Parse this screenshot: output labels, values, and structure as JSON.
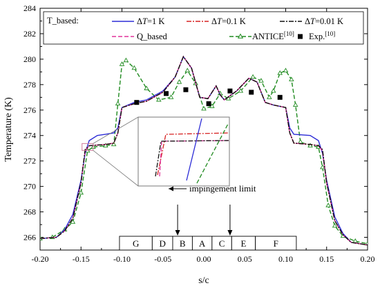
{
  "chart_data": {
    "type": "line",
    "xlabel": "s/c",
    "ylabel": "Temperature (K)",
    "xlim": [
      -0.2,
      0.2
    ],
    "ylim": [
      265,
      284
    ],
    "xticks": [
      "-0.20",
      "-0.15",
      "-0.10",
      "-0.05",
      "0.00",
      "0.05",
      "0.10",
      "0.15",
      "0.20"
    ],
    "xtick_values": [
      -0.2,
      -0.15,
      -0.1,
      -0.05,
      0.0,
      0.05,
      0.1,
      0.15,
      0.2
    ],
    "yticks": [
      "266",
      "268",
      "270",
      "272",
      "274",
      "276",
      "278",
      "280",
      "282",
      "284"
    ],
    "ytick_values": [
      266,
      268,
      270,
      272,
      274,
      276,
      278,
      280,
      282,
      284
    ],
    "legend": {
      "group_label": "T_based:",
      "entries": [
        {
          "label_pre": "Δ",
          "label_ital": "T",
          "label_post": "=1 K",
          "color": "#2b2bd6",
          "dash": "solid"
        },
        {
          "label_pre": "Δ",
          "label_ital": "T",
          "label_post": "=0.1 K",
          "color": "#d62020",
          "dash": "dashdot"
        },
        {
          "label_pre": "Δ",
          "label_ital": "T",
          "label_post": "=0.01 K",
          "color": "#111111",
          "dash": "dashdot"
        },
        {
          "label_pre": "Q_based",
          "label_ital": "",
          "label_post": "",
          "color": "#e0309a",
          "dash": "dashed"
        },
        {
          "label_pre": "ANTICE",
          "label_ital": "",
          "label_post": "",
          "sup": "[10]",
          "color": "#1f8a1f",
          "dash": "dashed",
          "marker": "triangle"
        },
        {
          "label_pre": "Exp.",
          "label_ital": "",
          "label_post": "",
          "sup": "[10]",
          "color": "#000000",
          "marker": "square"
        }
      ],
      "placement": "top"
    },
    "series": [
      {
        "name": "ΔT=1 K",
        "color": "#2b2bd6",
        "points": [
          [
            -0.2,
            265.9
          ],
          [
            -0.18,
            266.0
          ],
          [
            -0.17,
            266.6
          ],
          [
            -0.16,
            267.8
          ],
          [
            -0.15,
            270.5
          ],
          [
            -0.145,
            272.6
          ],
          [
            -0.14,
            273.6
          ],
          [
            -0.13,
            274.0
          ],
          [
            -0.12,
            274.1
          ],
          [
            -0.11,
            274.2
          ],
          [
            -0.105,
            274.6
          ],
          [
            -0.1,
            276.2
          ],
          [
            -0.085,
            276.6
          ],
          [
            -0.07,
            276.8
          ],
          [
            -0.05,
            277.5
          ],
          [
            -0.035,
            278.6
          ],
          [
            -0.025,
            280.2
          ],
          [
            -0.015,
            279.3
          ],
          [
            -0.005,
            277.0
          ],
          [
            0.005,
            276.9
          ],
          [
            0.015,
            277.9
          ],
          [
            0.02,
            277.2
          ],
          [
            0.025,
            276.8
          ],
          [
            0.04,
            277.5
          ],
          [
            0.055,
            278.5
          ],
          [
            0.065,
            278.2
          ],
          [
            0.075,
            276.6
          ],
          [
            0.085,
            276.4
          ],
          [
            0.1,
            276.2
          ],
          [
            0.105,
            274.6
          ],
          [
            0.11,
            274.1
          ],
          [
            0.13,
            274.0
          ],
          [
            0.14,
            273.6
          ],
          [
            0.145,
            272.6
          ],
          [
            0.15,
            270.5
          ],
          [
            0.16,
            267.6
          ],
          [
            0.17,
            266.3
          ],
          [
            0.18,
            265.6
          ],
          [
            0.2,
            265.4
          ]
        ]
      },
      {
        "name": "ΔT=0.1 K",
        "color": "#d62020",
        "points": [
          [
            -0.2,
            265.9
          ],
          [
            -0.18,
            266.0
          ],
          [
            -0.17,
            266.5
          ],
          [
            -0.16,
            267.5
          ],
          [
            -0.15,
            270.3
          ],
          [
            -0.145,
            272.8
          ],
          [
            -0.14,
            273.2
          ],
          [
            -0.12,
            273.3
          ],
          [
            -0.11,
            273.4
          ],
          [
            -0.105,
            274.2
          ],
          [
            -0.1,
            276.2
          ],
          [
            -0.085,
            276.5
          ],
          [
            -0.07,
            276.7
          ],
          [
            -0.05,
            277.4
          ],
          [
            -0.035,
            278.6
          ],
          [
            -0.025,
            280.2
          ],
          [
            -0.015,
            279.3
          ],
          [
            -0.005,
            277.0
          ],
          [
            0.005,
            276.9
          ],
          [
            0.015,
            277.9
          ],
          [
            0.02,
            277.2
          ],
          [
            0.025,
            276.8
          ],
          [
            0.04,
            277.5
          ],
          [
            0.055,
            278.5
          ],
          [
            0.065,
            278.2
          ],
          [
            0.075,
            276.6
          ],
          [
            0.085,
            276.4
          ],
          [
            0.1,
            276.2
          ],
          [
            0.105,
            274.2
          ],
          [
            0.11,
            273.4
          ],
          [
            0.13,
            273.3
          ],
          [
            0.14,
            273.2
          ],
          [
            0.145,
            272.8
          ],
          [
            0.15,
            270.3
          ],
          [
            0.16,
            267.3
          ],
          [
            0.17,
            266.2
          ],
          [
            0.18,
            265.6
          ],
          [
            0.2,
            265.4
          ]
        ]
      },
      {
        "name": "ΔT=0.01 K",
        "color": "#111111",
        "points": [
          [
            -0.2,
            265.9
          ],
          [
            -0.18,
            266.0
          ],
          [
            -0.17,
            266.5
          ],
          [
            -0.16,
            267.5
          ],
          [
            -0.15,
            270.3
          ],
          [
            -0.145,
            272.9
          ],
          [
            -0.14,
            273.2
          ],
          [
            -0.12,
            273.3
          ],
          [
            -0.11,
            273.4
          ],
          [
            -0.105,
            274.2
          ],
          [
            -0.1,
            276.2
          ],
          [
            -0.085,
            276.5
          ],
          [
            -0.07,
            276.7
          ],
          [
            -0.05,
            277.4
          ],
          [
            -0.035,
            278.6
          ],
          [
            -0.025,
            280.2
          ],
          [
            -0.015,
            279.3
          ],
          [
            -0.005,
            277.0
          ],
          [
            0.005,
            276.9
          ],
          [
            0.015,
            277.9
          ],
          [
            0.02,
            277.2
          ],
          [
            0.025,
            276.8
          ],
          [
            0.04,
            277.5
          ],
          [
            0.055,
            278.5
          ],
          [
            0.065,
            278.2
          ],
          [
            0.075,
            276.6
          ],
          [
            0.085,
            276.4
          ],
          [
            0.1,
            276.2
          ],
          [
            0.105,
            274.2
          ],
          [
            0.11,
            273.4
          ],
          [
            0.13,
            273.3
          ],
          [
            0.14,
            273.2
          ],
          [
            0.145,
            272.9
          ],
          [
            0.15,
            270.3
          ],
          [
            0.16,
            267.3
          ],
          [
            0.17,
            266.2
          ],
          [
            0.18,
            265.6
          ],
          [
            0.2,
            265.4
          ]
        ]
      },
      {
        "name": "Q_based",
        "color": "#e0309a",
        "points": [
          [
            -0.2,
            265.9
          ],
          [
            -0.18,
            266.0
          ],
          [
            -0.17,
            266.5
          ],
          [
            -0.16,
            267.5
          ],
          [
            -0.15,
            270.3
          ],
          [
            -0.145,
            272.8
          ],
          [
            -0.14,
            273.2
          ],
          [
            -0.12,
            273.3
          ],
          [
            -0.11,
            273.4
          ],
          [
            -0.105,
            274.2
          ],
          [
            -0.1,
            276.2
          ],
          [
            -0.085,
            276.5
          ],
          [
            -0.07,
            276.7
          ],
          [
            -0.05,
            277.4
          ],
          [
            -0.035,
            278.6
          ],
          [
            -0.025,
            280.2
          ],
          [
            -0.015,
            279.3
          ],
          [
            -0.005,
            277.0
          ],
          [
            0.005,
            276.9
          ],
          [
            0.015,
            277.9
          ],
          [
            0.02,
            277.2
          ],
          [
            0.025,
            276.8
          ],
          [
            0.04,
            277.5
          ],
          [
            0.055,
            278.5
          ],
          [
            0.065,
            278.2
          ],
          [
            0.075,
            276.6
          ],
          [
            0.085,
            276.4
          ],
          [
            0.1,
            276.2
          ],
          [
            0.105,
            274.2
          ],
          [
            0.11,
            273.4
          ],
          [
            0.13,
            273.3
          ],
          [
            0.14,
            273.2
          ],
          [
            0.145,
            272.8
          ],
          [
            0.15,
            270.3
          ],
          [
            0.16,
            267.3
          ],
          [
            0.17,
            266.2
          ],
          [
            0.18,
            265.6
          ],
          [
            0.2,
            265.4
          ]
        ]
      },
      {
        "name": "ANTICE[10]",
        "color": "#1f8a1f",
        "marker": "triangle",
        "points": [
          [
            -0.2,
            265.9
          ],
          [
            -0.185,
            266.0
          ],
          [
            -0.17,
            266.6
          ],
          [
            -0.16,
            267.2
          ],
          [
            -0.15,
            269.5
          ],
          [
            -0.142,
            272.8
          ],
          [
            -0.135,
            273.1
          ],
          [
            -0.12,
            273.2
          ],
          [
            -0.11,
            273.3
          ],
          [
            -0.105,
            276.5
          ],
          [
            -0.1,
            279.6
          ],
          [
            -0.095,
            279.9
          ],
          [
            -0.085,
            279.3
          ],
          [
            -0.07,
            277.7
          ],
          [
            -0.055,
            276.8
          ],
          [
            -0.04,
            277.0
          ],
          [
            -0.03,
            278.2
          ],
          [
            -0.02,
            279.1
          ],
          [
            -0.01,
            278.1
          ],
          [
            0.0,
            276.1
          ],
          [
            0.01,
            276.3
          ],
          [
            0.02,
            277.3
          ],
          [
            0.03,
            276.9
          ],
          [
            0.045,
            277.5
          ],
          [
            0.06,
            278.6
          ],
          [
            0.07,
            278.3
          ],
          [
            0.08,
            277.0
          ],
          [
            0.085,
            277.5
          ],
          [
            0.093,
            278.9
          ],
          [
            0.1,
            279.1
          ],
          [
            0.107,
            278.4
          ],
          [
            0.112,
            276.4
          ],
          [
            0.118,
            273.5
          ],
          [
            0.13,
            273.2
          ],
          [
            0.14,
            273.1
          ],
          [
            0.145,
            271.5
          ],
          [
            0.152,
            268.5
          ],
          [
            0.16,
            266.9
          ],
          [
            0.17,
            266.1
          ],
          [
            0.185,
            265.7
          ],
          [
            0.2,
            265.5
          ]
        ]
      },
      {
        "name": "Exp.[10]",
        "color": "#000000",
        "marker": "square",
        "scatter": true,
        "points": [
          [
            -0.082,
            276.6
          ],
          [
            -0.046,
            277.3
          ],
          [
            -0.022,
            277.6
          ],
          [
            0.006,
            276.5
          ],
          [
            0.032,
            277.5
          ],
          [
            0.058,
            277.4
          ],
          [
            0.093,
            277.0
          ]
        ]
      }
    ],
    "regions": [
      {
        "label": "G",
        "x0": -0.103,
        "x1": -0.063
      },
      {
        "label": "D",
        "x0": -0.063,
        "x1": -0.038
      },
      {
        "label": "B",
        "x0": -0.038,
        "x1": -0.014
      },
      {
        "label": "A",
        "x0": -0.014,
        "x1": 0.01
      },
      {
        "label": "C",
        "x0": 0.01,
        "x1": 0.034
      },
      {
        "label": "E",
        "x0": 0.034,
        "x1": 0.063
      },
      {
        "label": "F",
        "x0": 0.063,
        "x1": 0.113
      }
    ],
    "annotation": {
      "text": "impingement limit",
      "arrow_tip_x": -0.043,
      "arrow_x_values": [
        -0.032,
        0.032
      ]
    },
    "inset": {
      "description_zoom_around_x": -0.142,
      "zoom_around_y": 273.1
    },
    "grid": false
  }
}
